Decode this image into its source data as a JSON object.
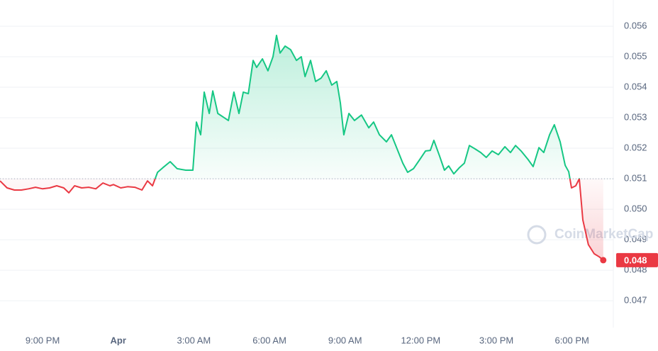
{
  "chart_data": {
    "type": "line",
    "x": [
      19.31,
      19.59,
      19.88,
      20.16,
      20.44,
      20.72,
      21.0,
      21.28,
      21.56,
      21.84,
      22.04,
      22.27,
      22.55,
      22.83,
      23.11,
      23.39,
      23.67,
      23.81,
      24.1,
      24.37,
      24.66,
      24.94,
      25.16,
      25.36,
      25.56,
      25.78,
      26.06,
      26.34,
      26.68,
      26.96,
      27.1,
      27.27,
      27.41,
      27.61,
      27.75,
      27.95,
      28.17,
      28.37,
      28.59,
      28.79,
      28.96,
      29.16,
      29.35,
      29.49,
      29.72,
      29.94,
      30.14,
      30.28,
      30.42,
      30.62,
      30.84,
      31.07,
      31.26,
      31.41,
      31.63,
      31.83,
      32.05,
      32.25,
      32.47,
      32.67,
      32.81,
      32.95,
      33.15,
      33.37,
      33.65,
      33.94,
      34.13,
      34.36,
      34.64,
      34.84,
      35.06,
      35.29,
      35.48,
      35.71,
      35.96,
      36.19,
      36.38,
      36.52,
      36.75,
      36.94,
      37.11,
      37.31,
      37.54,
      37.73,
      37.93,
      38.15,
      38.38,
      38.6,
      38.83,
      39.08,
      39.34,
      39.56,
      39.76,
      39.98,
      40.26,
      40.46,
      40.69,
      40.88,
      41.11,
      41.3,
      41.53,
      41.73,
      41.87,
      41.98,
      42.15,
      42.29,
      42.43,
      42.65,
      42.88,
      43.08,
      43.24
    ],
    "series": [
      {
        "values": [
          0.05093,
          0.0507,
          0.05063,
          0.05063,
          0.05067,
          0.05072,
          0.05067,
          0.0507,
          0.05077,
          0.0507,
          0.05054,
          0.05077,
          0.0507,
          0.05072,
          0.05067,
          0.05086,
          0.05077,
          0.05081,
          0.0507,
          0.05074,
          0.05072,
          0.05063,
          0.05093,
          0.05077,
          0.05121,
          0.05137,
          0.05156,
          0.05133,
          0.05128,
          0.05128,
          0.05286,
          0.05244,
          0.05384,
          0.05314,
          0.05388,
          0.05314,
          0.05302,
          0.05291,
          0.05384,
          0.05314,
          0.05384,
          0.05379,
          0.05488,
          0.05465,
          0.05493,
          0.05454,
          0.055,
          0.0557,
          0.05512,
          0.05535,
          0.05523,
          0.05488,
          0.055,
          0.05435,
          0.05488,
          0.05419,
          0.0543,
          0.05454,
          0.05407,
          0.05419,
          0.05349,
          0.05244,
          0.05314,
          0.05291,
          0.05309,
          0.05267,
          0.05286,
          0.05244,
          0.05221,
          0.05244,
          0.05198,
          0.05151,
          0.05121,
          0.05133,
          0.05163,
          0.05191,
          0.05193,
          0.05226,
          0.05174,
          0.05128,
          0.05142,
          0.05116,
          0.05137,
          0.05151,
          0.05209,
          0.05198,
          0.05186,
          0.0517,
          0.05191,
          0.05179,
          0.05205,
          0.05186,
          0.05209,
          0.05191,
          0.05163,
          0.0514,
          0.05202,
          0.05186,
          0.05244,
          0.05277,
          0.05221,
          0.05144,
          0.05123,
          0.0507,
          0.05077,
          0.051,
          0.04965,
          0.04884,
          0.04854,
          0.04844,
          0.04833
        ]
      }
    ],
    "up_color": "#16c784",
    "down_color": "#ea3943",
    "reference_line": 0.051,
    "last_label": "0.048",
    "watermark": "CoinMarketCap",
    "xlim": [
      19.31,
      43.64
    ],
    "xticks": [
      {
        "value": 21,
        "label": "9:00 PM"
      },
      {
        "value": 24,
        "label": "Apr"
      },
      {
        "value": 27,
        "label": "3:00 AM"
      },
      {
        "value": 30,
        "label": "6:00 AM"
      },
      {
        "value": 33,
        "label": "9:00 AM"
      },
      {
        "value": 36,
        "label": "12:00 PM"
      },
      {
        "value": 39,
        "label": "3:00 PM"
      },
      {
        "value": 42,
        "label": "6:00 PM"
      }
    ],
    "ylim": [
      0.04612,
      0.05686
    ],
    "yticks": [
      0.047,
      0.048,
      0.049,
      {
        "value": 0.05,
        "label": "0.050"
      },
      0.051,
      0.052,
      0.053,
      0.054,
      0.055,
      0.056
    ],
    "grid": true
  }
}
